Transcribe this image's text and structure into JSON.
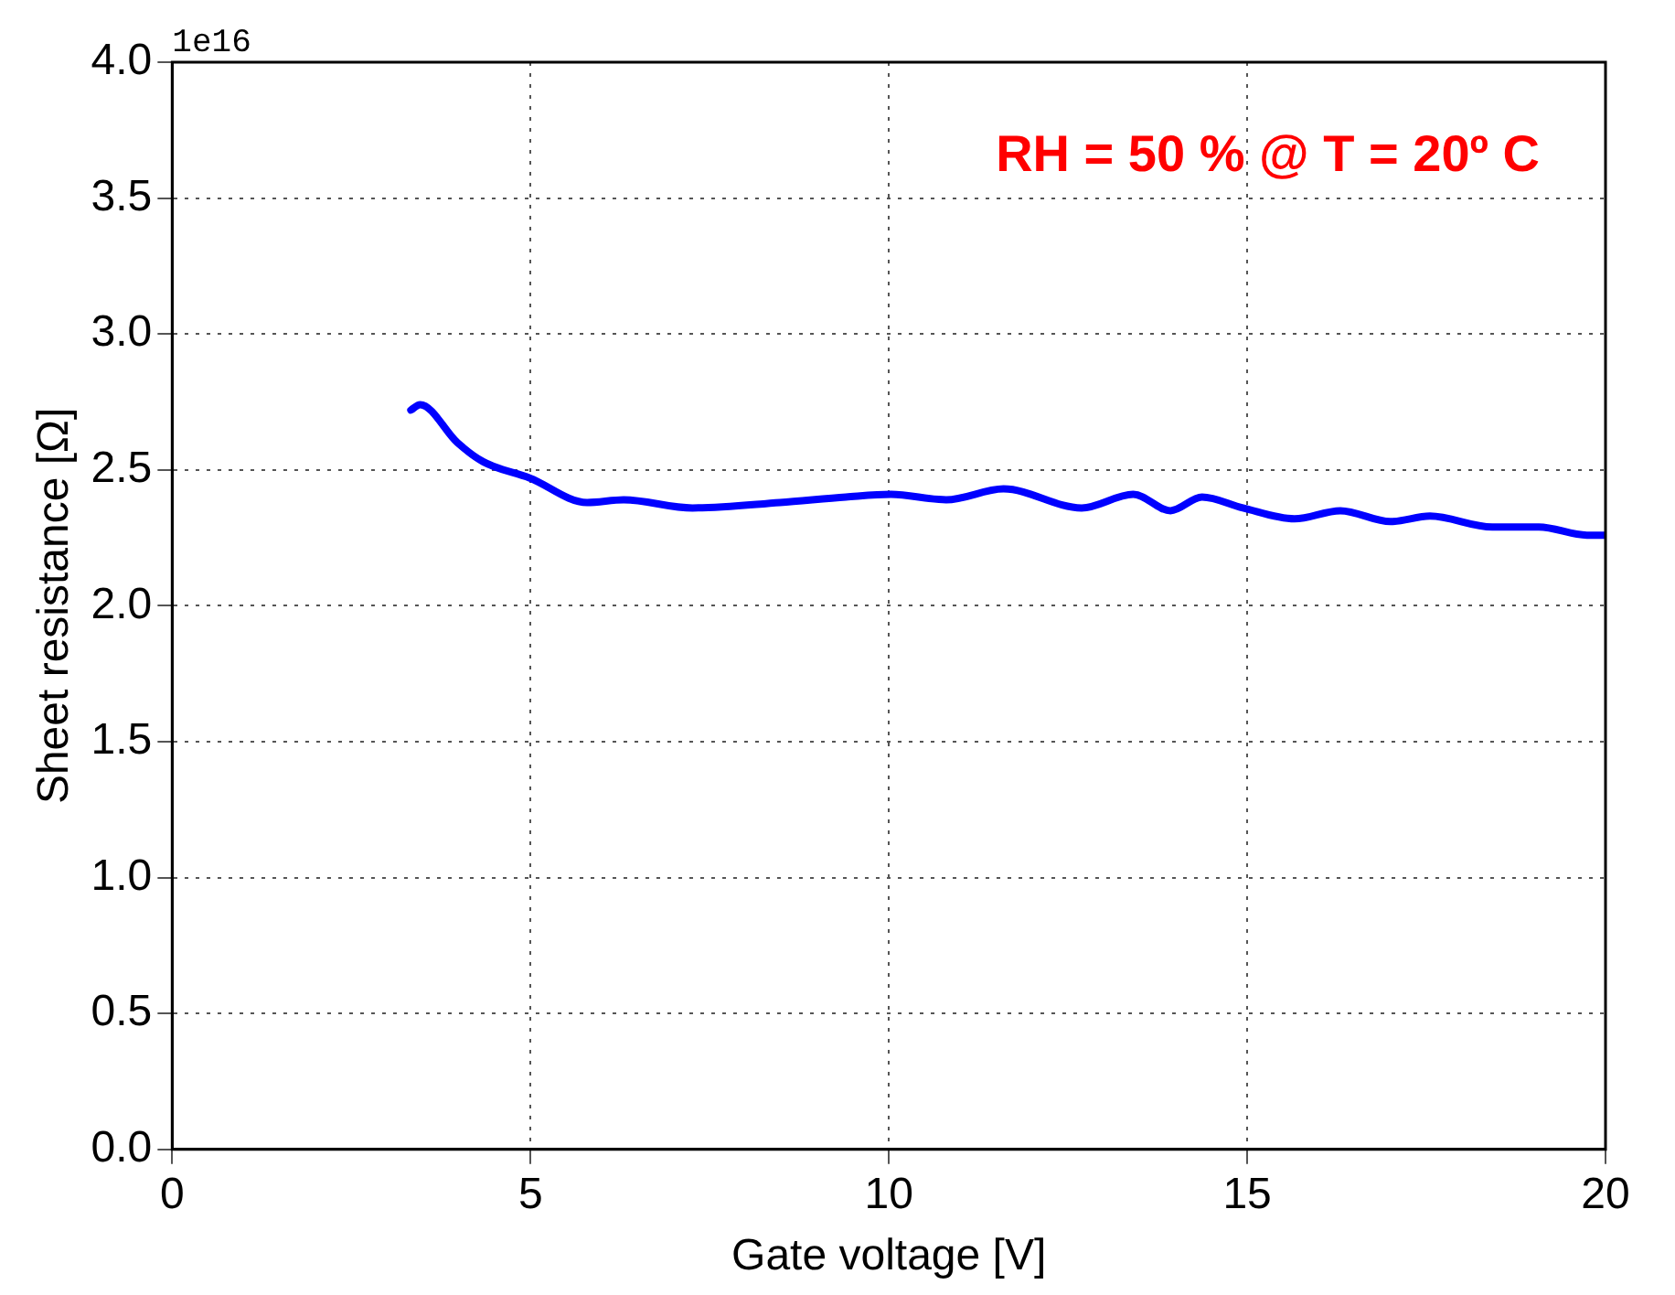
{
  "chart_data": {
    "type": "line",
    "xlabel": "Gate voltage [V]",
    "ylabel": "Sheet resistance [Ω]",
    "annotations": [
      "1e16",
      "RH = 50 % @ T = 20º C"
    ],
    "xlim": [
      0,
      20
    ],
    "xticks": [
      0,
      5,
      10,
      15,
      20
    ],
    "ylim": [
      0,
      4
    ],
    "yticks": [
      {
        "value": 0,
        "label": "0.0"
      },
      {
        "value": 0.5,
        "label": "0.5"
      },
      {
        "value": 1,
        "label": "1.0"
      },
      {
        "value": 1.5,
        "label": "1.5"
      },
      {
        "value": 2,
        "label": "2.0"
      },
      {
        "value": 2.5,
        "label": "2.5"
      },
      {
        "value": 3,
        "label": "3.0"
      },
      {
        "value": 3.5,
        "label": "3.5"
      },
      {
        "value": 4,
        "label": "4.0"
      }
    ],
    "grid": true,
    "legend": false,
    "marker": "none",
    "line_style": "solid",
    "series": [
      {
        "color": "#0000ff",
        "x": [
          3.33,
          3.46,
          3.98,
          4.34,
          4.99,
          5.79,
          6.3,
          7.26,
          8.48,
          9.4,
          10.03,
          10.8,
          11.6,
          12.69,
          13.41,
          13.93,
          14.37,
          14.94,
          15.66,
          16.3,
          17.0,
          17.55,
          18.42,
          19.07,
          19.74,
          20
        ],
        "values": [
          2.72,
          2.74,
          2.6,
          2.53,
          2.47,
          2.38,
          2.39,
          2.36,
          2.38,
          2.4,
          2.41,
          2.39,
          2.43,
          2.36,
          2.41,
          2.35,
          2.4,
          2.36,
          2.32,
          2.35,
          2.31,
          2.33,
          2.29,
          2.29,
          2.26,
          2.26
        ]
      }
    ]
  }
}
